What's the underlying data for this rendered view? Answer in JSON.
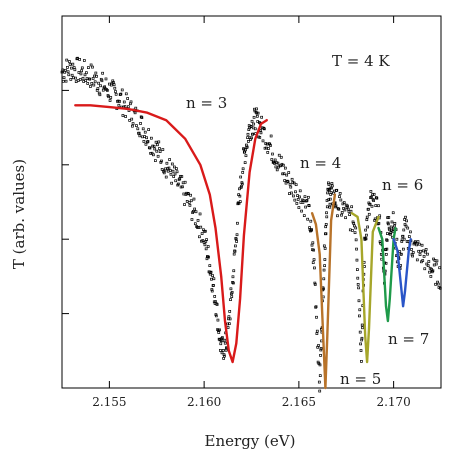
{
  "chart_data": {
    "type": "scatter",
    "xlabel": "Energy (eV)",
    "ylabel": "T (arb. values)",
    "xlim": [
      2.1525,
      2.1725
    ],
    "ylim": [
      0,
      1
    ],
    "x_ticks": [
      "2.155",
      "2.160",
      "2.165",
      "2.170"
    ],
    "x_tick_values": [
      2.155,
      2.16,
      2.165,
      2.17
    ],
    "y_ticks_labeled": false,
    "grid": false,
    "annotations": {
      "temperature": "T = 4 K",
      "n3": "n = 3",
      "n4": "n = 4",
      "n5": "n = 5",
      "n6": "n = 6",
      "n7": "n = 7"
    },
    "series": [
      {
        "kind": "data-points",
        "color": "#000000",
        "x": [
          2.1525,
          2.153,
          2.1535,
          2.154,
          2.1545,
          2.155,
          2.1555,
          2.156,
          2.1565,
          2.157,
          2.1575,
          2.158,
          2.1585,
          2.159,
          2.1595,
          2.16,
          2.1603,
          2.1606,
          2.1609,
          2.1612,
          2.1615,
          2.1618,
          2.1621,
          2.1624,
          2.1627,
          2.163,
          2.1635,
          2.164,
          2.1645,
          2.165,
          2.1655,
          2.1658,
          2.1661,
          2.1663,
          2.1665,
          2.1667,
          2.167,
          2.1675,
          2.168,
          2.1683,
          2.1685,
          2.1688,
          2.1692,
          2.1695,
          2.1697,
          2.17,
          2.1703,
          2.1706,
          2.171,
          2.1715,
          2.172,
          2.1725
        ],
        "y": [
          0.85,
          0.86,
          0.85,
          0.84,
          0.82,
          0.8,
          0.78,
          0.75,
          0.72,
          0.68,
          0.64,
          0.6,
          0.56,
          0.52,
          0.47,
          0.41,
          0.33,
          0.24,
          0.1,
          0.12,
          0.28,
          0.48,
          0.62,
          0.7,
          0.72,
          0.7,
          0.65,
          0.6,
          0.55,
          0.52,
          0.48,
          0.34,
          0.01,
          0.3,
          0.52,
          0.52,
          0.5,
          0.47,
          0.44,
          0.1,
          0.42,
          0.5,
          0.47,
          0.3,
          0.44,
          0.44,
          0.33,
          0.43,
          0.38,
          0.36,
          0.32,
          0.3
        ]
      },
      {
        "name": "n = 3",
        "kind": "fit",
        "color": "#d91a1a",
        "center": 2.1615,
        "x": [
          2.1532,
          2.154,
          2.155,
          2.156,
          2.157,
          2.158,
          2.159,
          2.1598,
          2.1603,
          2.1606,
          2.1609,
          2.1611,
          2.1613,
          2.1615,
          2.1617,
          2.1619,
          2.1621,
          2.1624,
          2.1627,
          2.163,
          2.1633
        ],
        "y": [
          0.76,
          0.76,
          0.755,
          0.75,
          0.74,
          0.72,
          0.67,
          0.6,
          0.52,
          0.43,
          0.3,
          0.18,
          0.1,
          0.07,
          0.12,
          0.24,
          0.41,
          0.58,
          0.67,
          0.71,
          0.72
        ]
      },
      {
        "name": "n = 4",
        "kind": "fit",
        "color": "#b8732a",
        "center": 2.1664,
        "x": [
          2.1657,
          2.1659,
          2.1661,
          2.1663,
          2.1664,
          2.1665,
          2.1667,
          2.1669
        ],
        "y": [
          0.47,
          0.44,
          0.36,
          0.12,
          0.0,
          0.14,
          0.45,
          0.52
        ]
      },
      {
        "name": "n = 5",
        "kind": "fit",
        "color": "#a6a62a",
        "center": 2.1686,
        "x": [
          2.1678,
          2.1681,
          2.1683,
          2.1685,
          2.1686,
          2.1687,
          2.1689,
          2.1692
        ],
        "y": [
          0.47,
          0.46,
          0.4,
          0.14,
          0.07,
          0.16,
          0.42,
          0.46
        ]
      },
      {
        "name": "n = 6",
        "kind": "fit",
        "color": "#1f9a4a",
        "center": 2.1697,
        "x": [
          2.1692,
          2.1694,
          2.1696,
          2.1697,
          2.1698,
          2.17,
          2.1701
        ],
        "y": [
          0.43,
          0.4,
          0.22,
          0.18,
          0.24,
          0.4,
          0.43
        ]
      },
      {
        "name": "n = 7",
        "kind": "fit",
        "color": "#2a55c8",
        "center": 2.1705,
        "x": [
          2.17,
          2.1702,
          2.1704,
          2.1705,
          2.1706,
          2.1708,
          2.1709
        ],
        "y": [
          0.4,
          0.37,
          0.27,
          0.22,
          0.26,
          0.37,
          0.4
        ]
      }
    ]
  }
}
